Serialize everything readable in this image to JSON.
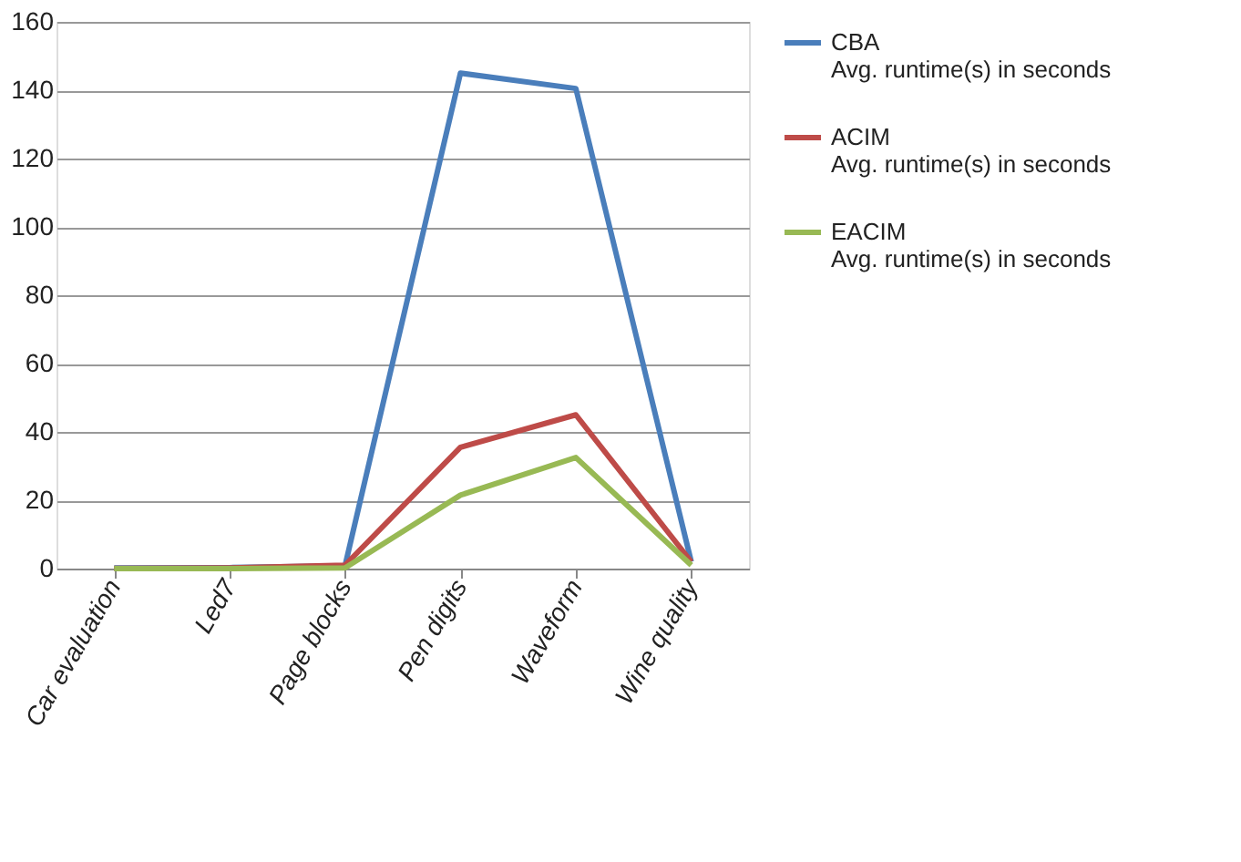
{
  "chart_data": {
    "type": "line",
    "categories": [
      "Car evaluation",
      "Led7",
      "Page blocks",
      "Pen digits",
      "Waveform",
      "Wine quality"
    ],
    "series": [
      {
        "name": "CBA\nAvg. runtime(s) in seconds",
        "color": "#4a7ebb",
        "values": [
          0.2,
          0.3,
          0.8,
          145,
          140.5,
          2
        ]
      },
      {
        "name": "ACIM\nAvg. runtime(s) in seconds",
        "color": "#be4b48",
        "values": [
          0.1,
          0.2,
          1,
          35.5,
          45,
          2
        ]
      },
      {
        "name": "EACIM\nAvg. runtime(s) in seconds",
        "color": "#98b954",
        "values": [
          0,
          0,
          0.2,
          21.5,
          32.5,
          1
        ]
      }
    ],
    "ylim": [
      0,
      160
    ],
    "yticks": [
      0,
      20,
      40,
      60,
      80,
      100,
      120,
      140,
      160
    ],
    "grid": "y",
    "legend": "right",
    "marker": "none",
    "line_style": "solid"
  }
}
